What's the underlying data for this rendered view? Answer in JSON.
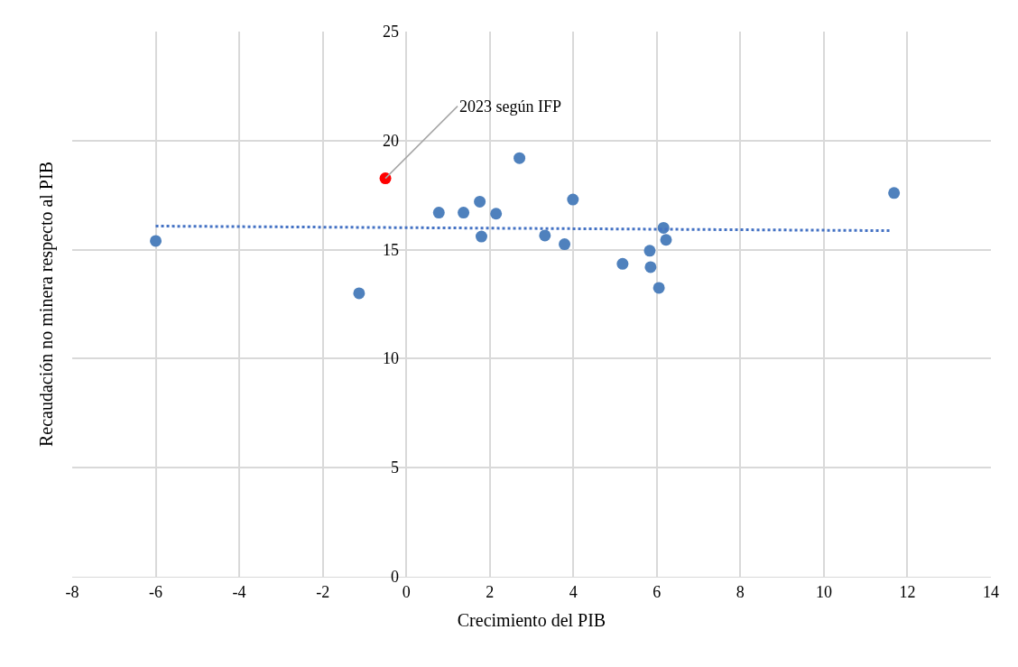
{
  "chart_data": {
    "type": "scatter",
    "xlabel": "Crecimiento del PIB",
    "ylabel": "Recaudación no minera respecto al PIB",
    "xlim": [
      -8,
      14
    ],
    "xticks": [
      -8,
      -6,
      -4,
      -2,
      0,
      2,
      4,
      6,
      8,
      10,
      12,
      14
    ],
    "ylim": [
      0,
      25
    ],
    "yticks": [
      0,
      5,
      10,
      15,
      20,
      25
    ],
    "grid": true,
    "marker": "circle",
    "series": [
      {
        "color": "#4f81bd",
        "x": [
          -6.0,
          -1.13,
          0.78,
          1.37,
          1.76,
          1.8,
          2.15,
          2.71,
          3.32,
          3.79,
          3.99,
          5.18,
          5.83,
          5.85,
          6.05,
          6.16,
          6.22,
          11.68
        ],
        "values": [
          15.4,
          13.0,
          16.7,
          16.7,
          17.2,
          15.6,
          16.65,
          19.2,
          15.65,
          15.25,
          17.3,
          14.35,
          14.95,
          14.2,
          13.25,
          16.0,
          15.45,
          17.6
        ]
      },
      {
        "color": "#ff0000",
        "x": [
          -0.5
        ],
        "values": [
          18.27
        ]
      },
      {
        "type": "line",
        "color": "#4472c4",
        "line_style": "dotted",
        "marker": "none",
        "x": [
          -6.0,
          11.6
        ],
        "values": [
          16.08,
          15.87
        ]
      }
    ],
    "annotations": [
      {
        "text": "2023 según IFP",
        "x": -0.5,
        "y": 18.27
      }
    ]
  }
}
